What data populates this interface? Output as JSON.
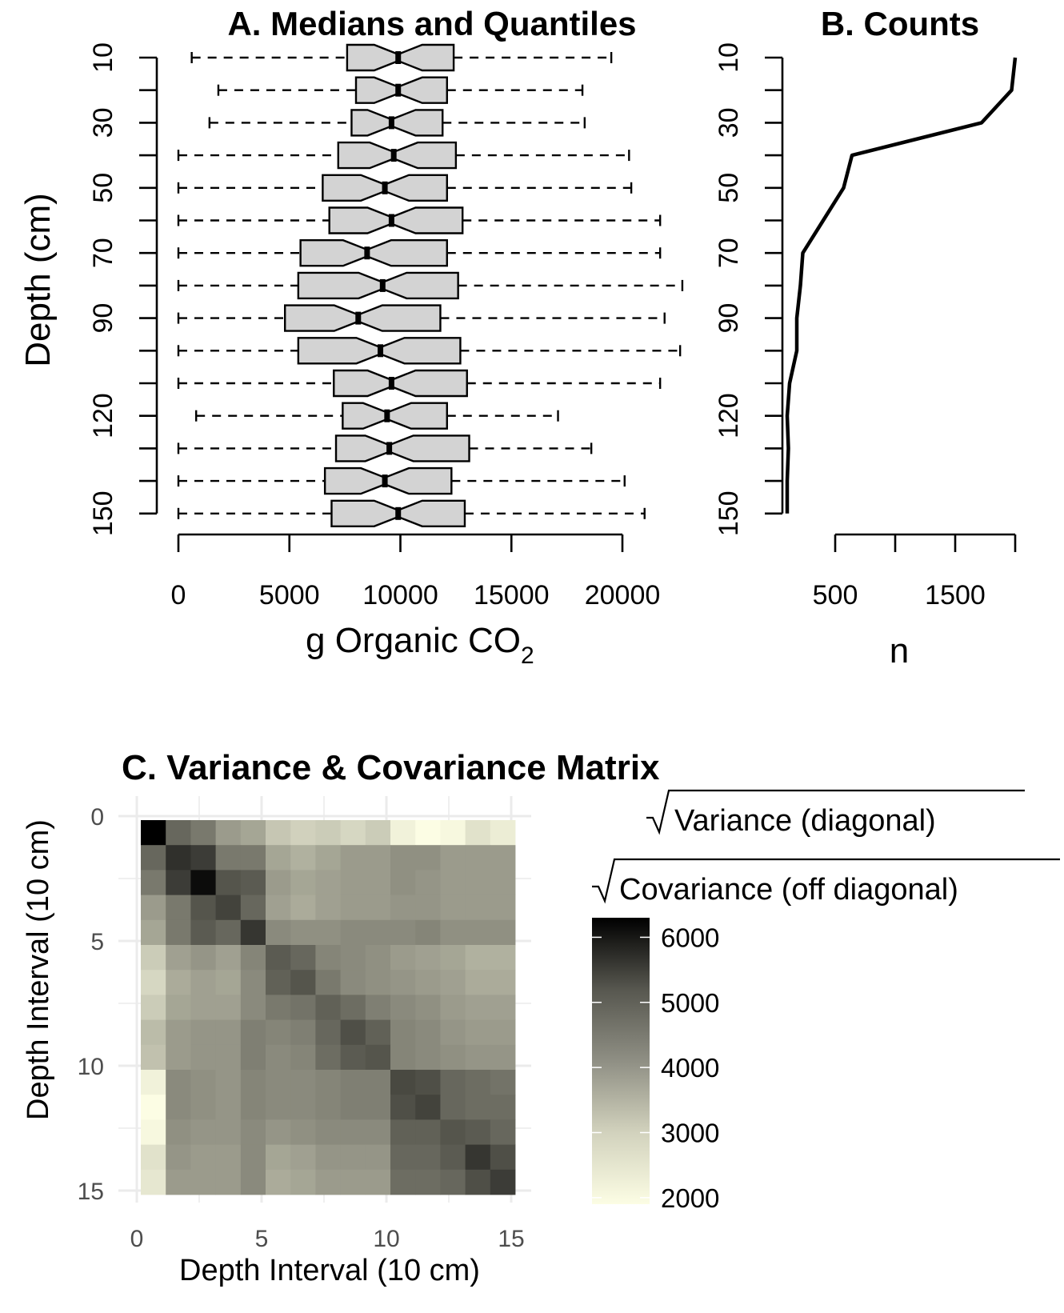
{
  "chart_data": [
    {
      "type": "boxplot",
      "title": "A. Medians and Quantiles",
      "xlabel": "g Organic CO",
      "xlabel_subscript": "2",
      "ylabel": "Depth (cm)",
      "orientation": "horizontal",
      "xlim": [
        -500,
        22500
      ],
      "xticks": [
        "0",
        "5000",
        "10000",
        "15000",
        "20000"
      ],
      "yticks": [
        "10",
        "30",
        "50",
        "70",
        "90",
        "120",
        "150"
      ],
      "depths": [
        10,
        20,
        30,
        40,
        50,
        60,
        70,
        80,
        90,
        100,
        110,
        120,
        130,
        140,
        150
      ],
      "boxes": [
        {
          "min": 600,
          "q1": 7600,
          "median": 9900,
          "q3": 12400,
          "max": 19500
        },
        {
          "min": 1800,
          "q1": 8000,
          "median": 9900,
          "q3": 12100,
          "max": 18200
        },
        {
          "min": 1400,
          "q1": 7800,
          "median": 9600,
          "q3": 11900,
          "max": 18300
        },
        {
          "min": 0,
          "q1": 7200,
          "median": 9700,
          "q3": 12500,
          "max": 20300
        },
        {
          "min": 0,
          "q1": 6500,
          "median": 9300,
          "q3": 12100,
          "max": 20400
        },
        {
          "min": 0,
          "q1": 6800,
          "median": 9600,
          "q3": 12800,
          "max": 21700
        },
        {
          "min": 0,
          "q1": 5500,
          "median": 8500,
          "q3": 12100,
          "max": 21700
        },
        {
          "min": 0,
          "q1": 5400,
          "median": 9200,
          "q3": 12600,
          "max": 22700
        },
        {
          "min": 0,
          "q1": 4800,
          "median": 8100,
          "q3": 11800,
          "max": 21900
        },
        {
          "min": 0,
          "q1": 5400,
          "median": 9100,
          "q3": 12700,
          "max": 22600
        },
        {
          "min": 0,
          "q1": 7000,
          "median": 9600,
          "q3": 13000,
          "max": 21700
        },
        {
          "min": 800,
          "q1": 7400,
          "median": 9400,
          "q3": 12100,
          "max": 17100
        },
        {
          "min": 0,
          "q1": 7100,
          "median": 9500,
          "q3": 13100,
          "max": 18600
        },
        {
          "min": 0,
          "q1": 6600,
          "median": 9300,
          "q3": 12300,
          "max": 20100
        },
        {
          "min": 0,
          "q1": 6900,
          "median": 9900,
          "q3": 12900,
          "max": 21000
        }
      ],
      "box_fill": "#d3d3d3"
    },
    {
      "type": "line",
      "title": "B. Counts",
      "xlabel": "n",
      "ylabel": "",
      "xlim": [
        -50,
        2050
      ],
      "xticks": [
        "500",
        "1500"
      ],
      "xtick_values": [
        500,
        1000,
        1500,
        2000
      ],
      "yticks": [
        "10",
        "30",
        "50",
        "70",
        "90",
        "120",
        "150"
      ],
      "depths": [
        10,
        20,
        30,
        40,
        50,
        60,
        70,
        80,
        90,
        100,
        110,
        120,
        130,
        140,
        150
      ],
      "n": [
        2000,
        1970,
        1720,
        640,
        570,
        400,
        230,
        210,
        180,
        180,
        120,
        100,
        110,
        100,
        100
      ]
    },
    {
      "type": "heatmap",
      "title": "C. Variance & Covariance Matrix",
      "xlabel": "Depth Interval (10 cm)",
      "ylabel": "Depth Interval (10 cm)",
      "xticks": [
        "0",
        "5",
        "10",
        "15"
      ],
      "yticks": [
        "0",
        "5",
        "10",
        "15"
      ],
      "legend_title_line1": "Variance (diagonal)",
      "legend_title_line2": "Covariance (off diagonal)",
      "legend_ticks": [
        "6000",
        "5000",
        "4000",
        "3000",
        "2000"
      ],
      "color_range": [
        1900,
        6300
      ],
      "color_low": "#fcfde4",
      "color_mid": "#858578",
      "color_high": "#000000",
      "values": [
        [
          6300,
          4600,
          4300,
          3700,
          3500,
          2900,
          2700,
          2800,
          2600,
          2800,
          2100,
          1900,
          2000,
          2400,
          2200
        ],
        [
          4600,
          5500,
          5300,
          4300,
          4300,
          3500,
          3300,
          3500,
          3700,
          3700,
          3900,
          3900,
          3700,
          3700,
          3700
        ],
        [
          4300,
          5300,
          6100,
          4900,
          4800,
          3700,
          3500,
          3600,
          3700,
          3700,
          3900,
          3800,
          3700,
          3700,
          3700
        ],
        [
          3700,
          4300,
          4900,
          5200,
          4600,
          3600,
          3400,
          3600,
          3700,
          3700,
          3800,
          3800,
          3700,
          3700,
          3700
        ],
        [
          3500,
          4300,
          4800,
          4600,
          5400,
          4000,
          3900,
          3900,
          4000,
          4000,
          4000,
          4100,
          3900,
          3900,
          3900
        ],
        [
          2800,
          3600,
          3800,
          3600,
          4100,
          4800,
          4600,
          4100,
          4000,
          3900,
          3700,
          3600,
          3500,
          3300,
          3300
        ],
        [
          2600,
          3400,
          3600,
          3500,
          4000,
          4700,
          4900,
          4300,
          4000,
          3900,
          3800,
          3700,
          3600,
          3400,
          3400
        ],
        [
          2800,
          3500,
          3600,
          3600,
          4000,
          4300,
          4400,
          4700,
          4500,
          4200,
          4000,
          3900,
          3700,
          3600,
          3600
        ],
        [
          3100,
          3700,
          3800,
          3800,
          4200,
          4100,
          4200,
          4600,
          5000,
          4700,
          4100,
          4000,
          3800,
          3700,
          3700
        ],
        [
          3000,
          3700,
          3800,
          3800,
          4200,
          4000,
          4100,
          4500,
          4800,
          4900,
          4100,
          4000,
          3900,
          3800,
          3800
        ],
        [
          2100,
          4000,
          3900,
          3800,
          4100,
          4000,
          4000,
          4100,
          4200,
          4200,
          5100,
          5000,
          4600,
          4500,
          4400
        ],
        [
          1900,
          4000,
          3900,
          3800,
          4100,
          4000,
          4000,
          4100,
          4200,
          4200,
          5000,
          5200,
          4600,
          4500,
          4500
        ],
        [
          2000,
          3900,
          3800,
          3800,
          4000,
          3800,
          3900,
          4000,
          4000,
          4000,
          4700,
          4700,
          4900,
          4800,
          4600
        ],
        [
          2400,
          3800,
          3700,
          3700,
          4000,
          3500,
          3600,
          3800,
          3800,
          3800,
          4600,
          4600,
          4800,
          5400,
          5000
        ],
        [
          2300,
          3700,
          3700,
          3700,
          4000,
          3400,
          3500,
          3700,
          3700,
          3700,
          4500,
          4500,
          4600,
          5000,
          5300
        ]
      ]
    }
  ]
}
